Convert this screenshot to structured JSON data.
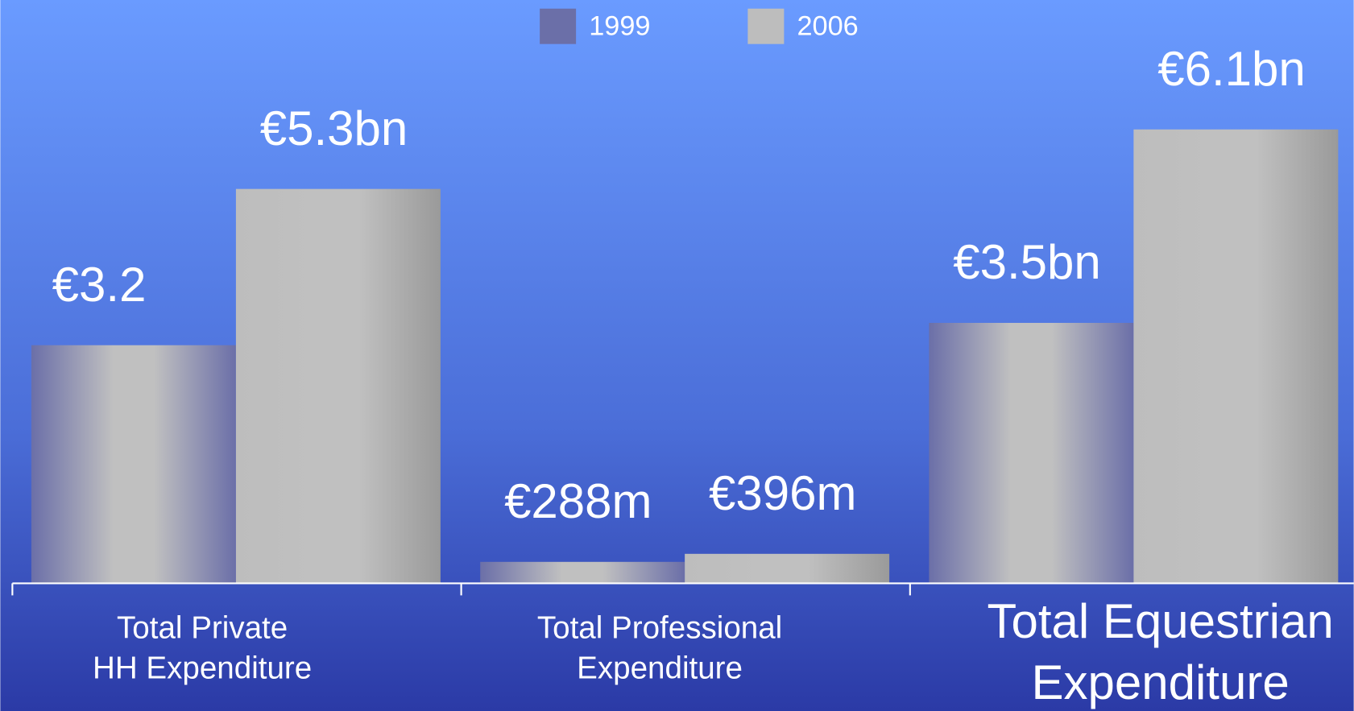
{
  "chart_data": {
    "type": "bar",
    "categories": [
      [
        "Total Private",
        "HH Expenditure"
      ],
      [
        "Total Professional",
        "Expenditure"
      ],
      [
        "Total Equestrian",
        "Expenditure"
      ]
    ],
    "series": [
      {
        "name": "1999",
        "color": "#6b6fa8",
        "values": [
          3.2,
          0.288,
          3.5
        ],
        "value_labels": [
          "€3.2",
          "€288m",
          "€3.5bn"
        ]
      },
      {
        "name": "2006",
        "color": "#bdbdbd",
        "values": [
          5.3,
          0.396,
          6.1
        ],
        "value_labels": [
          "€5.3bn",
          "€396m",
          "€6.1bn"
        ]
      }
    ]
  }
}
